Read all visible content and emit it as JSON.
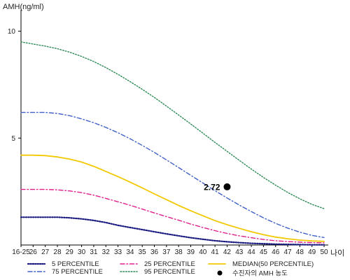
{
  "chart_data": {
    "type": "line",
    "ylabel": "AMH(ng/ml)",
    "xlabel": "나이",
    "x_ticks": [
      "16-25",
      "26",
      "27",
      "28",
      "29",
      "30",
      "31",
      "32",
      "33",
      "34",
      "35",
      "36",
      "37",
      "38",
      "39",
      "40",
      "41",
      "42",
      "43",
      "44",
      "45",
      "46",
      "47",
      "48",
      "49",
      "50"
    ],
    "y_ticks": [
      5,
      10
    ],
    "ylim": [
      0,
      11
    ],
    "grid": false,
    "legend_position": "bottom",
    "series": [
      {
        "name": "5 PERCENTILE",
        "color": "#1a1a80",
        "values": [
          1.3,
          1.3,
          1.3,
          1.3,
          1.27,
          1.22,
          1.15,
          1.05,
          0.92,
          0.82,
          0.72,
          0.62,
          0.52,
          0.43,
          0.34,
          0.27,
          0.2,
          0.15,
          0.11,
          0.08,
          0.06,
          0.04,
          0.03,
          0.02,
          0.01,
          0.01
        ]
      },
      {
        "name": "25 PERCENTILE",
        "color": "#e0208c",
        "values": [
          2.6,
          2.6,
          2.6,
          2.58,
          2.53,
          2.45,
          2.33,
          2.18,
          2.02,
          1.86,
          1.68,
          1.5,
          1.33,
          1.16,
          0.98,
          0.82,
          0.67,
          0.54,
          0.43,
          0.34,
          0.26,
          0.2,
          0.16,
          0.13,
          0.11,
          0.1
        ]
      },
      {
        "name": "MEDIAN(50 PERCENTILE)",
        "color": "#f2c800",
        "values": [
          4.2,
          4.2,
          4.18,
          4.12,
          4.02,
          3.88,
          3.68,
          3.44,
          3.2,
          2.94,
          2.67,
          2.39,
          2.12,
          1.85,
          1.6,
          1.37,
          1.14,
          0.95,
          0.78,
          0.62,
          0.48,
          0.37,
          0.29,
          0.23,
          0.19,
          0.17
        ]
      },
      {
        "name": "75 PERCENTILE",
        "color": "#4060c8",
        "values": [
          6.2,
          6.2,
          6.2,
          6.15,
          6.05,
          5.9,
          5.72,
          5.5,
          5.25,
          4.97,
          4.66,
          4.33,
          3.98,
          3.62,
          3.26,
          2.9,
          2.54,
          2.2,
          1.87,
          1.56,
          1.27,
          1.01,
          0.79,
          0.6,
          0.45,
          0.35
        ]
      },
      {
        "name": "95 PERCENTILE",
        "color": "#2e8b57",
        "values": [
          9.5,
          9.4,
          9.3,
          9.18,
          9.02,
          8.82,
          8.58,
          8.3,
          7.98,
          7.64,
          7.28,
          6.9,
          6.5,
          6.08,
          5.66,
          5.23,
          4.8,
          4.38,
          3.96,
          3.55,
          3.16,
          2.8,
          2.46,
          2.16,
          1.9,
          1.7
        ]
      }
    ],
    "points": [
      {
        "name": "수진자의 AMH 농도",
        "x": "42",
        "y": 2.72,
        "label": "2.72",
        "color": "#000000"
      }
    ]
  }
}
